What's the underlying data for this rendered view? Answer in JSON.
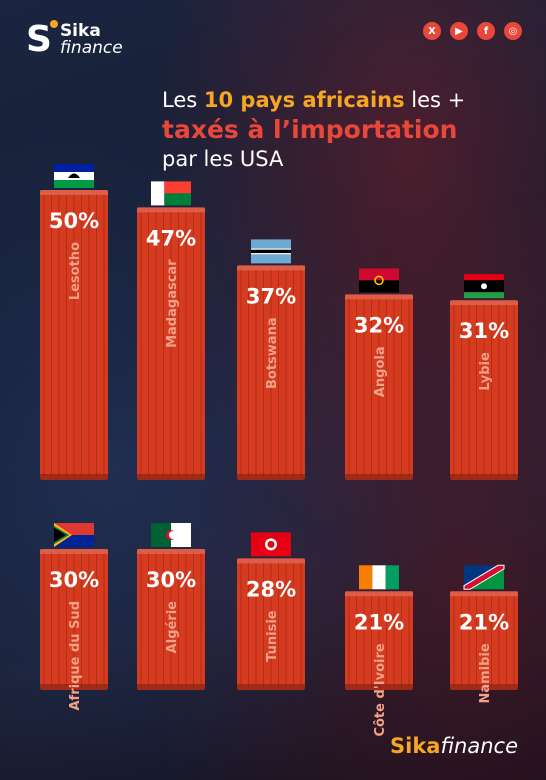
{
  "brand": {
    "logo_letter": "S",
    "logo_word_1": "Sika",
    "logo_word_2": "finance",
    "footer_bold": "Sika",
    "footer_italic": "finance",
    "accent": "#f5a623",
    "red": "#e8473a"
  },
  "social": [
    {
      "icon": "x-icon",
      "glyph": "X"
    },
    {
      "icon": "youtube-icon",
      "glyph": "▶"
    },
    {
      "icon": "facebook-icon",
      "glyph": "f"
    },
    {
      "icon": "instagram-icon",
      "glyph": "◎"
    }
  ],
  "title": {
    "line1_pre": "Les ",
    "line1_highlight": "10 pays africains",
    "line1_post": " les +",
    "line2": "taxés à l’importation",
    "line3": "par les USA"
  },
  "chart_data": {
    "type": "bar",
    "unit": "%",
    "categories": [
      "Lesotho",
      "Madagascar",
      "Botswana",
      "Angola",
      "Lybie",
      "Afrique du Sud",
      "Algérie",
      "Tunisie",
      "Côte d'Ivoire",
      "Namibie"
    ],
    "values": [
      50,
      47,
      37,
      32,
      31,
      30,
      30,
      28,
      21,
      21
    ],
    "labels": [
      "50%",
      "47%",
      "37%",
      "32%",
      "31%",
      "30%",
      "30%",
      "28%",
      "21%",
      "21%"
    ],
    "flags": [
      "lesotho-flag",
      "madagascar-flag",
      "botswana-flag",
      "angola-flag",
      "libya-flag",
      "south-africa-flag",
      "algeria-flag",
      "tunisia-flag",
      "ivory-coast-flag",
      "namibia-flag"
    ],
    "bar_color": "#d63a1f",
    "rows": 2
  }
}
